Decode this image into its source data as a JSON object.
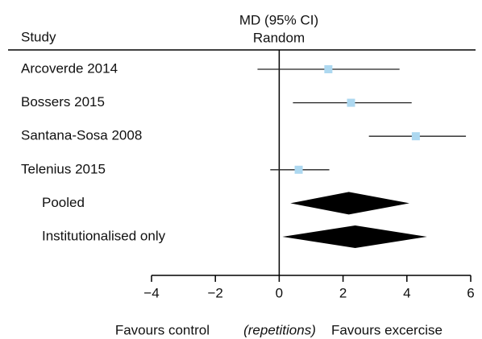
{
  "chart_data": {
    "type": "forest",
    "column_header": "Study",
    "effect_label": "MD (95% CI)",
    "model": "Random",
    "categories": [
      "Arcoverde 2014",
      "Bossers 2015",
      "Santana-Sosa 2008",
      "Telenius 2015"
    ],
    "values": [
      1.54,
      2.25,
      4.28,
      0.61
    ],
    "lower": [
      -0.68,
      0.43,
      2.81,
      -0.28
    ],
    "upper": [
      3.77,
      4.15,
      5.85,
      1.57
    ],
    "summaries": {
      "categories": [
        "Pooled",
        "Institutionalised only"
      ],
      "values": [
        2.18,
        2.38
      ],
      "lower": [
        0.35,
        0.1
      ],
      "upper": [
        4.08,
        4.63
      ]
    },
    "xlim": [
      -4,
      6
    ],
    "xticks": [
      {
        "value": -4,
        "label": "−4"
      },
      {
        "value": -2,
        "label": "−2"
      },
      0,
      2,
      4,
      6
    ],
    "xlabel": "(repetitions)",
    "left_label": "Favours control",
    "right_label": "Favours excercise",
    "marker_color": "#add8f0",
    "diamond_color": "#000000"
  }
}
